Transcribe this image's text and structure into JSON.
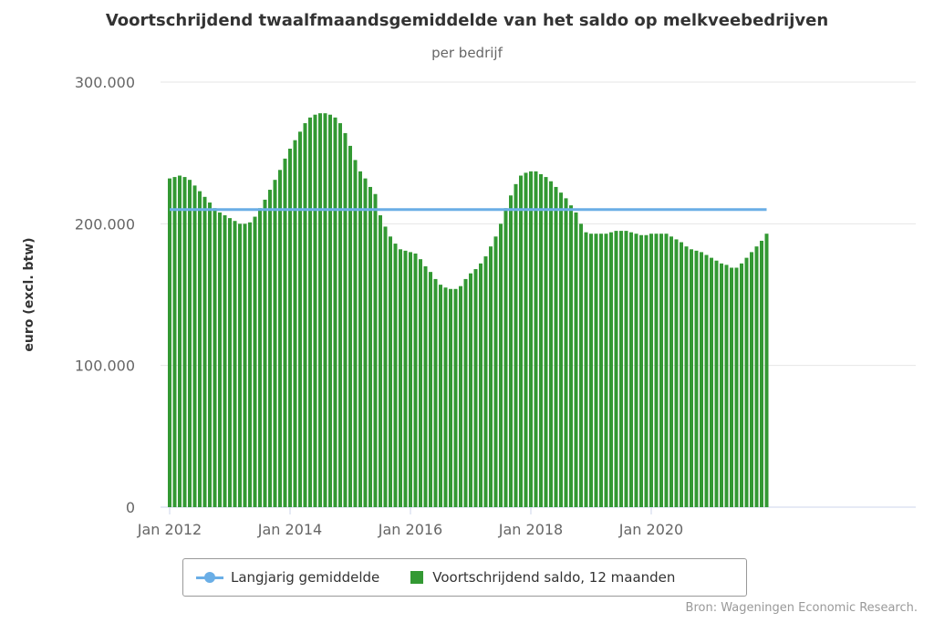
{
  "title": "Voortschrijdend twaalfmaandsgemiddelde van het saldo op melkveebedrijven",
  "subtitle": "per bedrijf",
  "source": "Bron: Wageningen Economic Research.",
  "colors": {
    "bars": "#339933",
    "line": "#6aaee6",
    "grid": "#e6e6e6"
  },
  "chart_data": {
    "type": "bar",
    "ylabel": "euro (excl. btw)",
    "ylim": [
      0,
      300000
    ],
    "yticks": [
      "0",
      "100.000",
      "200.000",
      "300.000"
    ],
    "xticks": [
      "Jan 2012",
      "Jan 2014",
      "Jan 2016",
      "Jan 2018",
      "Jan 2020"
    ],
    "x_start": "Jan 2012",
    "x_end": "Dec 2021",
    "grid": true,
    "legend_position": "bottom",
    "series": [
      {
        "name": "Langjarig gemiddelde",
        "type": "line",
        "value": 210000
      },
      {
        "name": "Voortschrijdend saldo, 12 maanden",
        "type": "bar",
        "values": [
          232000,
          233000,
          234000,
          233000,
          231000,
          227000,
          223000,
          219000,
          215000,
          211000,
          208000,
          206000,
          204000,
          202000,
          200000,
          200000,
          201000,
          205000,
          211000,
          217000,
          224000,
          231000,
          238000,
          246000,
          253000,
          259000,
          265000,
          271000,
          275000,
          277000,
          278000,
          278000,
          277000,
          275000,
          271000,
          264000,
          255000,
          245000,
          237000,
          232000,
          226000,
          221000,
          206000,
          198000,
          191000,
          186000,
          182000,
          181000,
          180000,
          179000,
          175000,
          170000,
          166000,
          161000,
          157000,
          155000,
          154000,
          154000,
          156000,
          161000,
          165000,
          168000,
          172000,
          177000,
          184000,
          191000,
          200000,
          211000,
          220000,
          228000,
          234000,
          236000,
          237000,
          237000,
          235000,
          233000,
          230000,
          226000,
          222000,
          218000,
          213000,
          208000,
          200000,
          194000,
          193000,
          193000,
          193000,
          193000,
          194000,
          195000,
          195000,
          195000,
          194000,
          193000,
          192000,
          192000,
          193000,
          193000,
          193000,
          193000,
          191000,
          189000,
          187000,
          184000,
          182000,
          181000,
          180000,
          178000,
          176000,
          174000,
          172000,
          171000,
          169000,
          169000,
          172000,
          176000,
          180000,
          184000,
          188000,
          193000
        ]
      }
    ]
  }
}
